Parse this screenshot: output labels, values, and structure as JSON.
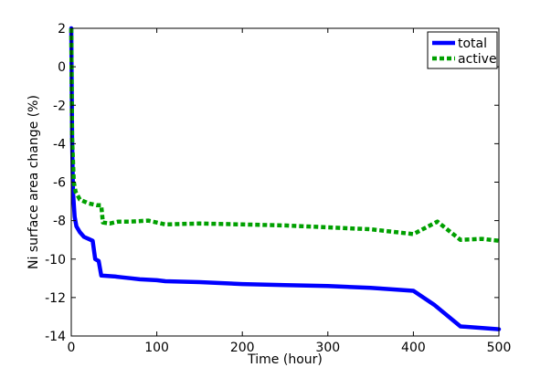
{
  "chart_data": {
    "type": "line",
    "title": "",
    "xlabel": "Time (hour)",
    "ylabel": "Ni surface area change (%)",
    "xlim": [
      0,
      500
    ],
    "ylim": [
      -14,
      2
    ],
    "xticks": [
      0,
      100,
      200,
      300,
      400,
      500
    ],
    "yticks": [
      -14,
      -12,
      -10,
      -8,
      -6,
      -4,
      -2,
      0,
      2
    ],
    "grid": false,
    "legend_position": "top-right",
    "series": [
      {
        "name": "total",
        "color": "#0000ff",
        "style": "solid",
        "points": [
          [
            0,
            2
          ],
          [
            1,
            -3.7
          ],
          [
            2,
            -6.5
          ],
          [
            4,
            -7.8
          ],
          [
            6,
            -8.3
          ],
          [
            10,
            -8.6
          ],
          [
            15,
            -8.85
          ],
          [
            20,
            -8.95
          ],
          [
            25,
            -9.05
          ],
          [
            28,
            -10.0
          ],
          [
            32,
            -10.1
          ],
          [
            35,
            -10.85
          ],
          [
            50,
            -10.9
          ],
          [
            60,
            -10.95
          ],
          [
            70,
            -11.0
          ],
          [
            80,
            -11.05
          ],
          [
            100,
            -11.1
          ],
          [
            110,
            -11.15
          ],
          [
            150,
            -11.2
          ],
          [
            200,
            -11.3
          ],
          [
            250,
            -11.35
          ],
          [
            300,
            -11.4
          ],
          [
            350,
            -11.5
          ],
          [
            400,
            -11.65
          ],
          [
            425,
            -12.4
          ],
          [
            455,
            -13.5
          ],
          [
            500,
            -13.65
          ]
        ]
      },
      {
        "name": "active",
        "color": "#00a000",
        "style": "dotted",
        "points": [
          [
            0,
            2
          ],
          [
            1,
            -3.7
          ],
          [
            3,
            -6.0
          ],
          [
            5,
            -6.5
          ],
          [
            10,
            -6.9
          ],
          [
            20,
            -7.1
          ],
          [
            30,
            -7.2
          ],
          [
            35,
            -7.2
          ],
          [
            37,
            -8.1
          ],
          [
            45,
            -8.15
          ],
          [
            55,
            -8.05
          ],
          [
            70,
            -8.05
          ],
          [
            90,
            -8.0
          ],
          [
            110,
            -8.2
          ],
          [
            150,
            -8.15
          ],
          [
            200,
            -8.2
          ],
          [
            250,
            -8.25
          ],
          [
            300,
            -8.35
          ],
          [
            350,
            -8.45
          ],
          [
            400,
            -8.7
          ],
          [
            428,
            -8.05
          ],
          [
            455,
            -9.0
          ],
          [
            480,
            -8.95
          ],
          [
            500,
            -9.05
          ]
        ]
      }
    ]
  }
}
